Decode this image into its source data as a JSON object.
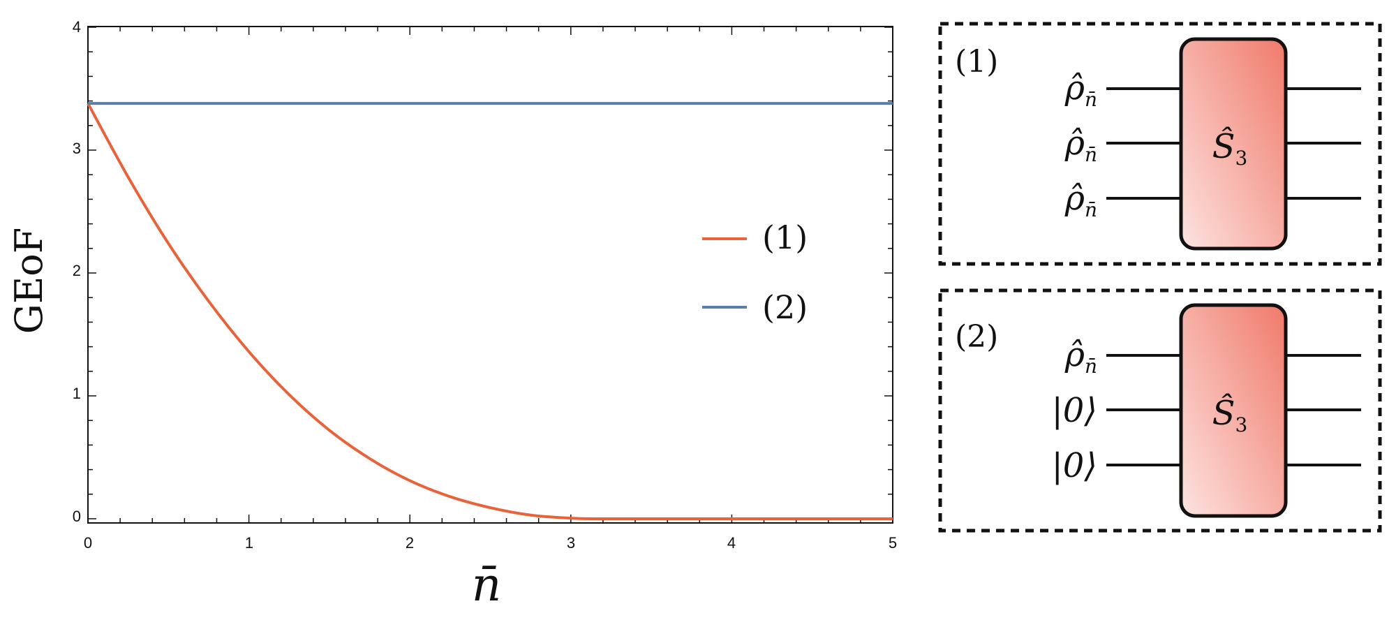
{
  "chart_data": {
    "type": "line",
    "xlabel": "n̄",
    "ylabel": "GEoF",
    "xlim": [
      0,
      5
    ],
    "ylim": [
      -0.05,
      4
    ],
    "x_ticks": [
      "0",
      "1",
      "2",
      "3",
      "4",
      "5"
    ],
    "y_ticks": [
      "0",
      "1",
      "2",
      "3",
      "4"
    ],
    "legend_position": "center-right",
    "series": [
      {
        "name": "(1)",
        "color": "#e8623a",
        "x": [
          0,
          0.25,
          0.5,
          0.75,
          1.0,
          1.25,
          1.5,
          1.75,
          2.0,
          2.25,
          2.5,
          2.75,
          3.0,
          3.15,
          3.5,
          4.0,
          4.5,
          5.0
        ],
        "y": [
          3.38,
          2.78,
          2.24,
          1.77,
          1.36,
          1.01,
          0.72,
          0.49,
          0.31,
          0.18,
          0.09,
          0.03,
          0.005,
          0.0,
          0.0,
          0.0,
          0.0,
          0.0
        ]
      },
      {
        "name": "(2)",
        "color": "#5b7ea8",
        "x": [
          0,
          5
        ],
        "y": [
          3.38,
          3.38
        ]
      }
    ]
  },
  "diagram": {
    "gate_label": "Ŝ",
    "gate_subscript": "3",
    "panels": [
      {
        "label": "(1)",
        "inputs": [
          {
            "main": "ρ̂",
            "sub": "n̄"
          },
          {
            "main": "ρ̂",
            "sub": "n̄"
          },
          {
            "main": "ρ̂",
            "sub": "n̄"
          }
        ]
      },
      {
        "label": "(2)",
        "inputs": [
          {
            "main": "ρ̂",
            "sub": "n̄"
          },
          {
            "main": "|0⟩",
            "sub": ""
          },
          {
            "main": "|0⟩",
            "sub": ""
          }
        ]
      }
    ]
  }
}
